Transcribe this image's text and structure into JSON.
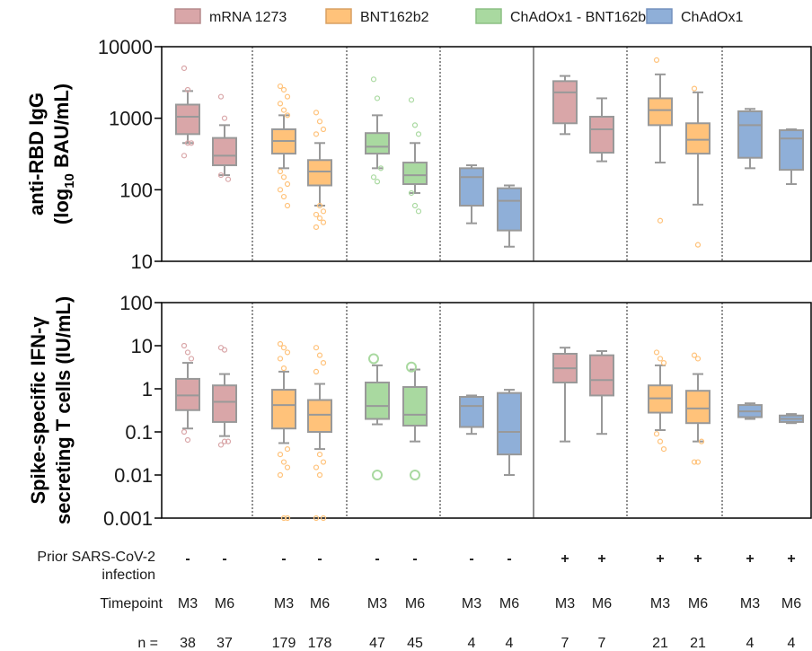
{
  "chart_data": {
    "type": "box",
    "legend": [
      {
        "name": "mRNA 1273",
        "color": "#d9a6a8",
        "edge": "#b58a8c"
      },
      {
        "name": "BNT162b2",
        "color": "#ffc27a",
        "edge": "#d9a062"
      },
      {
        "name": "ChAdOx1 - BNT162b2",
        "color": "#a9d9a0",
        "edge": "#8cbf84"
      },
      {
        "name": "ChAdOx1",
        "color": "#8fafd8",
        "edge": "#7391bd"
      }
    ],
    "groups": [
      {
        "vaccine": "mRNA 1273",
        "prior": "-",
        "timepoints": [
          "M3",
          "M6"
        ],
        "n": [
          "38",
          "37"
        ]
      },
      {
        "vaccine": "BNT162b2",
        "prior": "-",
        "timepoints": [
          "M3",
          "M6"
        ],
        "n": [
          "179",
          "178"
        ]
      },
      {
        "vaccine": "ChAdOx1 - BNT162b2",
        "prior": "-",
        "timepoints": [
          "M3",
          "M6"
        ],
        "n": [
          "47",
          "45"
        ]
      },
      {
        "vaccine": "ChAdOx1",
        "prior": "-",
        "timepoints": [
          "M3",
          "M6"
        ],
        "n": [
          "4",
          "4"
        ]
      },
      {
        "vaccine": "mRNA 1273",
        "prior": "+",
        "timepoints": [
          "M3",
          "M6"
        ],
        "n": [
          "7",
          "7"
        ]
      },
      {
        "vaccine": "BNT162b2",
        "prior": "+",
        "timepoints": [
          "M3",
          "M6"
        ],
        "n": [
          "21",
          "21"
        ]
      },
      {
        "vaccine": "ChAdOx1",
        "prior": "+",
        "timepoints": [
          "M3",
          "M6"
        ],
        "n": [
          "4",
          "4"
        ]
      }
    ],
    "row_labels": {
      "prior_line1": "Prior SARS-CoV-2",
      "prior_line2": "infection",
      "timepoint": "Timepoint",
      "n": "n ="
    },
    "panels": [
      {
        "ylabel_line1": "anti-RBD IgG",
        "ylabel_line2_pre": "(log",
        "ylabel_line2_sub": "10",
        "ylabel_line2_post": " BAU/mL)",
        "yscale": "log",
        "ylim": [
          10,
          10000
        ],
        "yticks": [
          "10",
          "100",
          "1000",
          "10000"
        ],
        "boxes": [
          {
            "q1": 600,
            "median": 1050,
            "q3": 1550,
            "whislo": 450,
            "whishi": 2400,
            "outliers": [
              5000,
              2500,
              450,
              300,
              450
            ]
          },
          {
            "q1": 220,
            "median": 300,
            "q3": 530,
            "whislo": 160,
            "whishi": 800,
            "outliers": [
              2000,
              1000,
              140,
              160
            ]
          },
          {
            "q1": 320,
            "median": 480,
            "q3": 700,
            "whislo": 200,
            "whishi": 1100,
            "outliers": [
              2800,
              2500,
              2000,
              1600,
              1300,
              1100,
              180,
              150,
              120,
              100,
              80,
              60
            ]
          },
          {
            "q1": 115,
            "median": 180,
            "q3": 260,
            "whislo": 60,
            "whishi": 450,
            "outliers": [
              1200,
              900,
              700,
              600,
              60,
              50,
              45,
              40,
              35,
              30
            ]
          },
          {
            "q1": 320,
            "median": 400,
            "q3": 620,
            "whislo": 200,
            "whishi": 1100,
            "outliers": [
              3500,
              1900,
              200,
              150,
              130
            ]
          },
          {
            "q1": 120,
            "median": 160,
            "q3": 240,
            "whislo": 90,
            "whishi": 450,
            "outliers": [
              1800,
              800,
              600,
              90,
              60,
              50
            ]
          },
          {
            "q1": 60,
            "median": 150,
            "q3": 200,
            "whislo": 34,
            "whishi": 220,
            "outliers": []
          },
          {
            "q1": 27,
            "median": 70,
            "q3": 105,
            "whislo": 16,
            "whishi": 115,
            "outliers": []
          },
          {
            "q1": 850,
            "median": 2300,
            "q3": 3300,
            "whislo": 600,
            "whishi": 3900,
            "outliers": []
          },
          {
            "q1": 330,
            "median": 700,
            "q3": 1050,
            "whislo": 250,
            "whishi": 1900,
            "outliers": []
          },
          {
            "q1": 800,
            "median": 1300,
            "q3": 1900,
            "whislo": 240,
            "whishi": 4100,
            "outliers": [
              6500,
              37
            ]
          },
          {
            "q1": 320,
            "median": 500,
            "q3": 850,
            "whislo": 62,
            "whishi": 2300,
            "outliers": [
              2600,
              17
            ]
          },
          {
            "q1": 280,
            "median": 800,
            "q3": 1250,
            "whislo": 200,
            "whishi": 1350,
            "outliers": []
          },
          {
            "q1": 190,
            "median": 520,
            "q3": 680,
            "whislo": 120,
            "whishi": 700,
            "outliers": []
          }
        ]
      },
      {
        "ylabel_line1": "Spike-specific IFN-γ",
        "ylabel_line2": "secreting T cells (IU/mL)",
        "yscale": "log",
        "ylim": [
          0.001,
          100
        ],
        "yticks": [
          "0.001",
          "0.01",
          "0.1",
          "1",
          "10",
          "100"
        ],
        "boxes": [
          {
            "q1": 0.32,
            "median": 0.7,
            "q3": 1.7,
            "whislo": 0.12,
            "whishi": 4.0,
            "outliers": [
              10,
              7,
              5,
              0.1,
              0.065
            ]
          },
          {
            "q1": 0.17,
            "median": 0.5,
            "q3": 1.2,
            "whislo": 0.08,
            "whishi": 2.2,
            "outliers": [
              9,
              8,
              0.06,
              0.05,
              0.06
            ]
          },
          {
            "q1": 0.12,
            "median": 0.42,
            "q3": 0.95,
            "whislo": 0.055,
            "whishi": 2.5,
            "outliers": [
              11,
              9,
              7,
              5,
              3,
              0.04,
              0.03,
              0.02,
              0.015,
              0.01,
              0.001,
              0.001
            ]
          },
          {
            "q1": 0.1,
            "median": 0.25,
            "q3": 0.55,
            "whislo": 0.04,
            "whishi": 1.3,
            "outliers": [
              9,
              6,
              4,
              2.5,
              0.03,
              0.02,
              0.015,
              0.01,
              0.001,
              0.001
            ]
          },
          {
            "q1": 0.2,
            "median": 0.4,
            "q3": 1.4,
            "whislo": 0.15,
            "whishi": 3.5,
            "outliers": [
              5,
              0.01
            ]
          },
          {
            "q1": 0.14,
            "median": 0.25,
            "q3": 1.1,
            "whislo": 0.06,
            "whishi": 2.8,
            "outliers": [
              3.2,
              0.01
            ]
          },
          {
            "q1": 0.13,
            "median": 0.4,
            "q3": 0.65,
            "whislo": 0.09,
            "whishi": 0.7,
            "outliers": []
          },
          {
            "q1": 0.03,
            "median": 0.1,
            "q3": 0.8,
            "whislo": 0.01,
            "whishi": 0.95,
            "outliers": []
          },
          {
            "q1": 1.4,
            "median": 3.0,
            "q3": 6.5,
            "whislo": 0.06,
            "whishi": 9.0,
            "outliers": []
          },
          {
            "q1": 0.7,
            "median": 1.6,
            "q3": 6.0,
            "whislo": 0.09,
            "whishi": 7.5,
            "outliers": []
          },
          {
            "q1": 0.28,
            "median": 0.6,
            "q3": 1.2,
            "whislo": 0.11,
            "whishi": 3.5,
            "outliers": [
              7,
              5,
              4,
              0.09,
              0.06,
              0.04
            ]
          },
          {
            "q1": 0.16,
            "median": 0.35,
            "q3": 0.9,
            "whislo": 0.06,
            "whishi": 2.2,
            "outliers": [
              6,
              5,
              0.06,
              0.02,
              0.02
            ]
          },
          {
            "q1": 0.22,
            "median": 0.3,
            "q3": 0.42,
            "whislo": 0.2,
            "whishi": 0.46,
            "outliers": []
          },
          {
            "q1": 0.17,
            "median": 0.2,
            "q3": 0.24,
            "whislo": 0.16,
            "whishi": 0.26,
            "outliers": []
          }
        ]
      }
    ]
  }
}
